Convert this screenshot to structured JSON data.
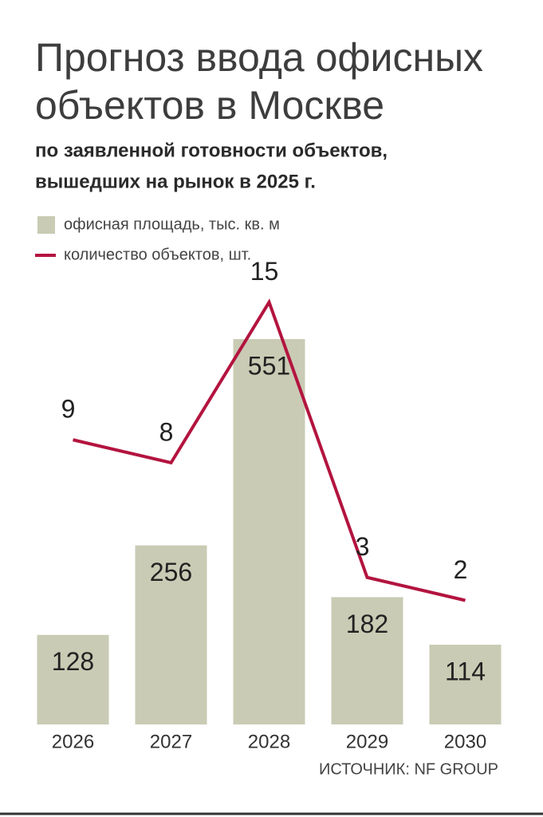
{
  "chart_data": {
    "type": "bar-line",
    "title": [
      "Прогноз ввода офисных",
      "объектов в Москве"
    ],
    "subtitle": [
      "по заявленной готовности объектов,",
      "вышедших на рынок в 2025 г."
    ],
    "categories": [
      "2026",
      "2027",
      "2028",
      "2029",
      "2030"
    ],
    "series": [
      {
        "name": "офисная площадь, тыс. кв. м",
        "color": "#c9cbb4",
        "type": "bar",
        "values": [
          128,
          256,
          551,
          182,
          114
        ]
      },
      {
        "name": "количество объектов, шт.",
        "color": "#b3143f",
        "type": "line",
        "axis": "y2",
        "values": [
          9,
          8,
          15,
          3,
          2
        ]
      }
    ],
    "ylim": [
      0,
      600
    ],
    "y2lim": [
      0,
      16
    ],
    "source": "ИСТОЧНИК: NF GROUP"
  }
}
